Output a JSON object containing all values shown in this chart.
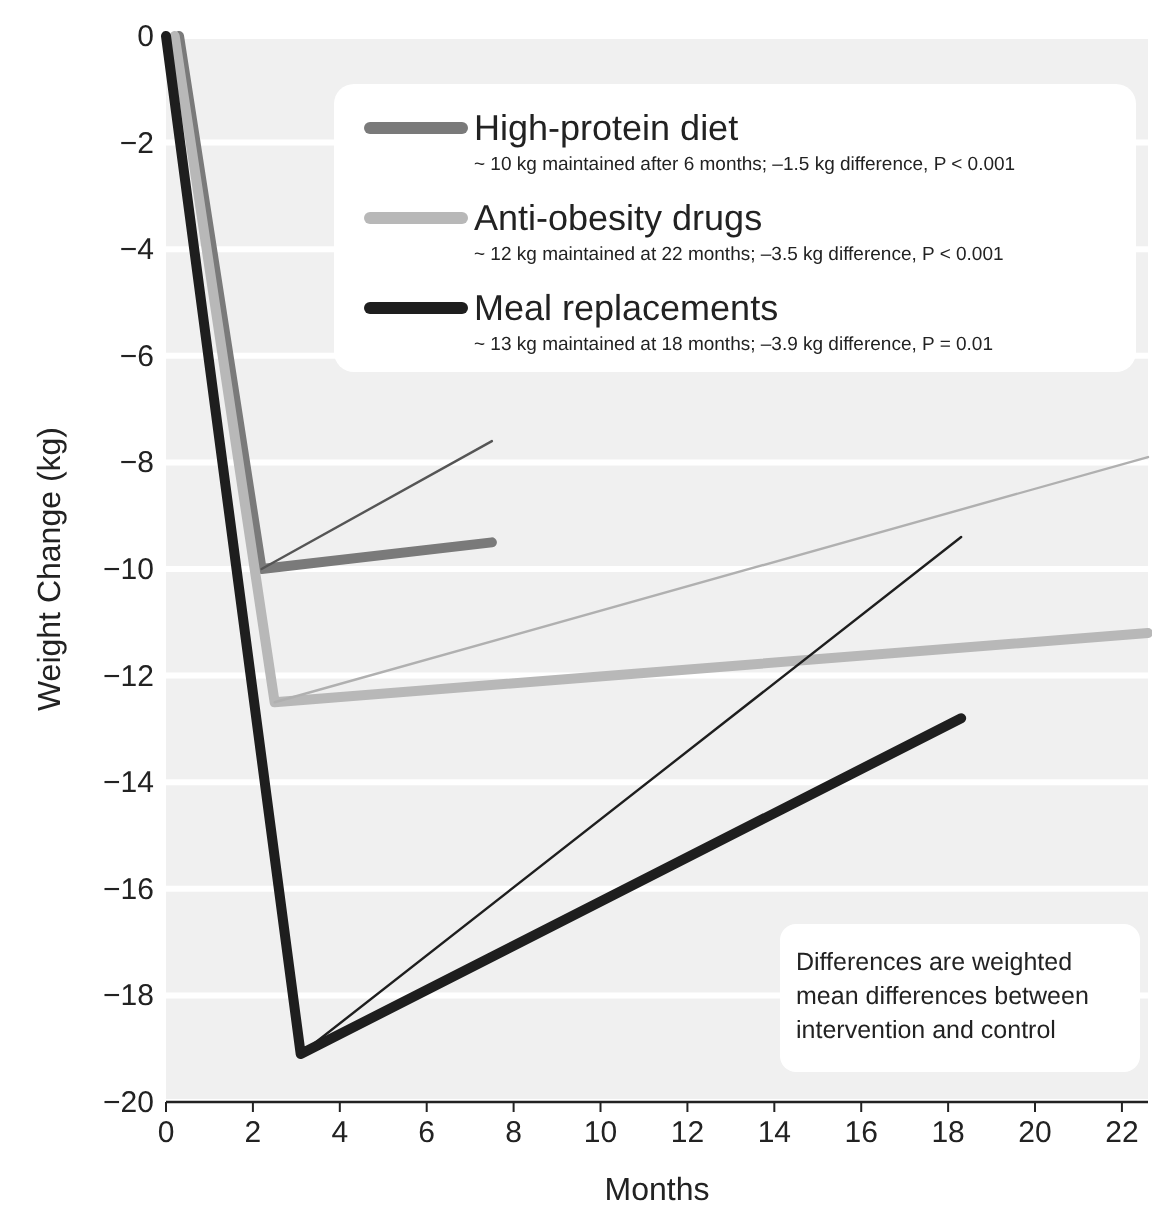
{
  "chart_data": {
    "type": "line",
    "xlabel": "Months",
    "ylabel": "Weight Change (kg)",
    "xlim": [
      0,
      22.6
    ],
    "ylim": [
      -20,
      0
    ],
    "xticks": [
      0,
      2,
      4,
      6,
      8,
      10,
      12,
      14,
      16,
      18,
      20,
      22
    ],
    "yticks": [
      0,
      -2,
      -4,
      -6,
      -8,
      -10,
      -12,
      -14,
      -16,
      -18,
      -20
    ],
    "grid": "y",
    "legend": "top",
    "marker": "none",
    "line_style": "solid",
    "series": [
      {
        "name": "High-protein diet",
        "color": "#7a7a7a",
        "x": [
          0.3,
          2.2,
          7.5
        ],
        "values": [
          0,
          -10,
          -9.5
        ]
      },
      {
        "name": "Anti-obesity drugs",
        "color": "#b8b8b8",
        "x": [
          0.2,
          2.5,
          22.6
        ],
        "values": [
          0,
          -12.5,
          -11.2
        ]
      },
      {
        "name": "Meal replacements",
        "color": "#1e1e1e",
        "x": [
          0,
          3.1,
          18.3
        ],
        "values": [
          0,
          -19.1,
          -12.8
        ]
      },
      {
        "color": "#555555",
        "x": [
          2.2,
          7.5
        ],
        "values": [
          -10,
          -7.6
        ]
      },
      {
        "color": "#b0b0b0",
        "x": [
          2.5,
          22.6
        ],
        "values": [
          -12.5,
          -7.9
        ]
      },
      {
        "color": "#1e1e1e",
        "x": [
          3.1,
          18.3
        ],
        "values": [
          -19.1,
          -9.4
        ]
      }
    ],
    "annotations": [
      "~ 10 kg maintained after 6 months; –1.5 kg difference, P < 0.001",
      "~ 12 kg maintained at 22 months; –3.5 kg difference, P < 0.001",
      "~ 13 kg maintained at 18 months; –3.9 kg difference, P = 0.01",
      "Differences are weighted mean differences between intervention and control"
    ]
  }
}
